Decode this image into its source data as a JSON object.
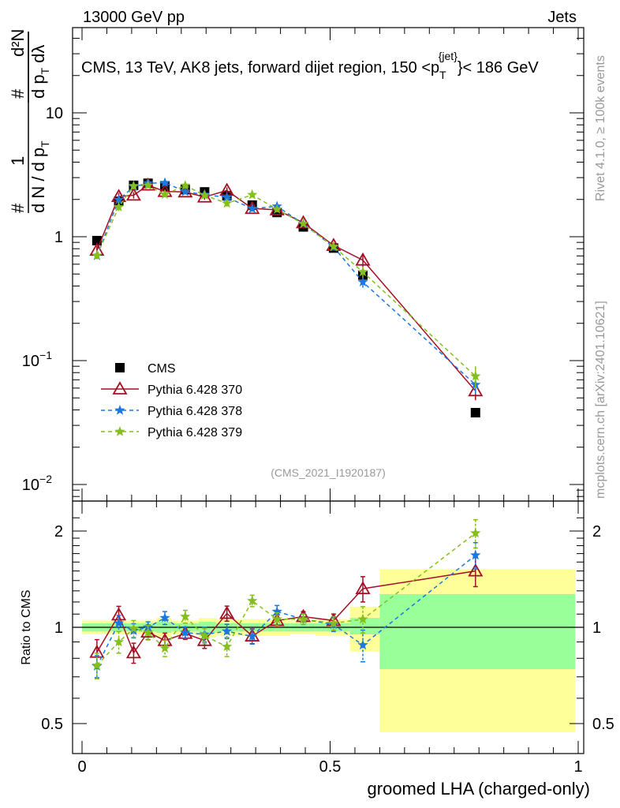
{
  "header": {
    "left": "13000 GeV pp",
    "right": "Jets"
  },
  "side_text": {
    "rivet": "Rivet 4.1.0, ≥ 100k events",
    "mcplots": "mcplots.cern.ch [arXiv:2401.10621]"
  },
  "chart_data": {
    "type": "scatter",
    "title": "CMS, 13 TeV, AK8 jets, forward dijet region, 150 <p",
    "title_sub": "T",
    "title_sup": "{jet}",
    "title_tail": "}< 186 GeV",
    "analysis_tag": "(CMS_2021_I1920187)",
    "xlabel": "groomed LHA (charged-only)",
    "ylabel": "1/(dN/dp_T) d²N/(dp_T dλ)",
    "ylabel_parts": {
      "num_top": "d²N",
      "den_top": "d p",
      "den_top_sub": "T",
      "den_top_tail": "dλ",
      "hash": "#",
      "one": "1",
      "den_bot": "d N / d p",
      "den_bot_sub": "T"
    },
    "ratio_ylabel": "Ratio to CMS",
    "xlim": [
      0,
      1
    ],
    "ylim": [
      0.0085,
      35
    ],
    "yscale": "log",
    "ratio_ylim": [
      0.43,
      2.4
    ],
    "x_ticks": [
      {
        "v": 0,
        "label": "0"
      },
      {
        "v": 0.5,
        "label": "0.5"
      },
      {
        "v": 1,
        "label": "1"
      }
    ],
    "y_ticks": [
      {
        "v": 0.01,
        "base": "10",
        "exp": "−2"
      },
      {
        "v": 0.1,
        "base": "10",
        "exp": "−1"
      },
      {
        "v": 1,
        "base": "1",
        "exp": ""
      },
      {
        "v": 10,
        "base": "10",
        "exp": ""
      }
    ],
    "ratio_ticks": [
      {
        "v": 0.5,
        "label": "0.5"
      },
      {
        "v": 1,
        "label": "1"
      },
      {
        "v": 2,
        "label": "2"
      }
    ],
    "x": [
      0.03,
      0.074,
      0.104,
      0.133,
      0.167,
      0.208,
      0.247,
      0.292,
      0.343,
      0.393,
      0.446,
      0.507,
      0.566,
      0.793
    ],
    "bin_edges": [
      0,
      0.06,
      0.09,
      0.12,
      0.15,
      0.18,
      0.235,
      0.27,
      0.315,
      0.37,
      0.42,
      0.47,
      0.54,
      0.6,
      0.994
    ],
    "data_band_total": {
      "up": [
        1.05,
        1.05,
        1.05,
        1.05,
        1.07,
        1.05,
        1.07,
        1.06,
        1.06,
        1.06,
        1.05,
        1.06,
        1.16,
        1.52
      ],
      "down": [
        0.95,
        0.95,
        0.95,
        0.95,
        0.93,
        0.95,
        0.93,
        0.94,
        0.94,
        0.94,
        0.95,
        0.94,
        0.84,
        0.47
      ]
    },
    "data_band_stat": {
      "up": [
        1.03,
        1.03,
        1.03,
        1.03,
        1.04,
        1.03,
        1.04,
        1.03,
        1.03,
        1.03,
        1.03,
        1.03,
        1.07,
        1.27
      ],
      "down": [
        0.97,
        0.97,
        0.97,
        0.97,
        0.96,
        0.97,
        0.96,
        0.97,
        0.97,
        0.97,
        0.97,
        0.97,
        0.95,
        0.74
      ]
    },
    "series": [
      {
        "name": "CMS",
        "color": "#000000",
        "marker": "square",
        "line": "none",
        "values": [
          0.93,
          1.93,
          2.6,
          2.7,
          2.55,
          2.4,
          2.3,
          2.14,
          1.8,
          1.57,
          1.2,
          0.81,
          0.49,
          0.038
        ]
      },
      {
        "name": "Pythia 6.428 370",
        "color": "#a50f25",
        "marker": "open-triangle",
        "line": "solid",
        "ratio": [
          0.835,
          1.093,
          0.832,
          0.966,
          0.909,
          0.957,
          0.909,
          1.105,
          0.939,
          1.05,
          1.08,
          1.05,
          1.32,
          1.5
        ],
        "ratio_err": [
          0.08,
          0.07,
          0.06,
          0.05,
          0.05,
          0.04,
          0.05,
          0.06,
          0.05,
          0.05,
          0.04,
          0.05,
          0.12,
          0.16
        ]
      },
      {
        "name": "Pythia 6.428 378",
        "color": "#1a78e0",
        "marker": "star",
        "line": "dashed",
        "ratio": [
          0.756,
          1.03,
          0.976,
          1.0,
          1.07,
          0.963,
          0.95,
          0.972,
          0.936,
          1.12,
          1.06,
          1.02,
          0.88,
          1.68
        ],
        "ratio_err": [
          0.06,
          0.06,
          0.05,
          0.04,
          0.05,
          0.04,
          0.05,
          0.05,
          0.05,
          0.05,
          0.04,
          0.05,
          0.1,
          0.16
        ]
      },
      {
        "name": "Pythia 6.428 379",
        "color": "#84bf1b",
        "marker": "star",
        "line": "dashed",
        "ratio": [
          0.76,
          0.9,
          0.99,
          0.963,
          0.86,
          1.08,
          0.94,
          0.87,
          1.21,
          1.06,
          1.06,
          1.03,
          1.06,
          1.97
        ],
        "ratio_err": [
          0.07,
          0.07,
          0.06,
          0.05,
          0.05,
          0.05,
          0.05,
          0.06,
          0.05,
          0.05,
          0.04,
          0.05,
          0.1,
          0.2
        ]
      }
    ],
    "band_colors": {
      "total": "#ffff99",
      "stat": "#99ff99"
    },
    "legend_placement": "lower-left"
  }
}
